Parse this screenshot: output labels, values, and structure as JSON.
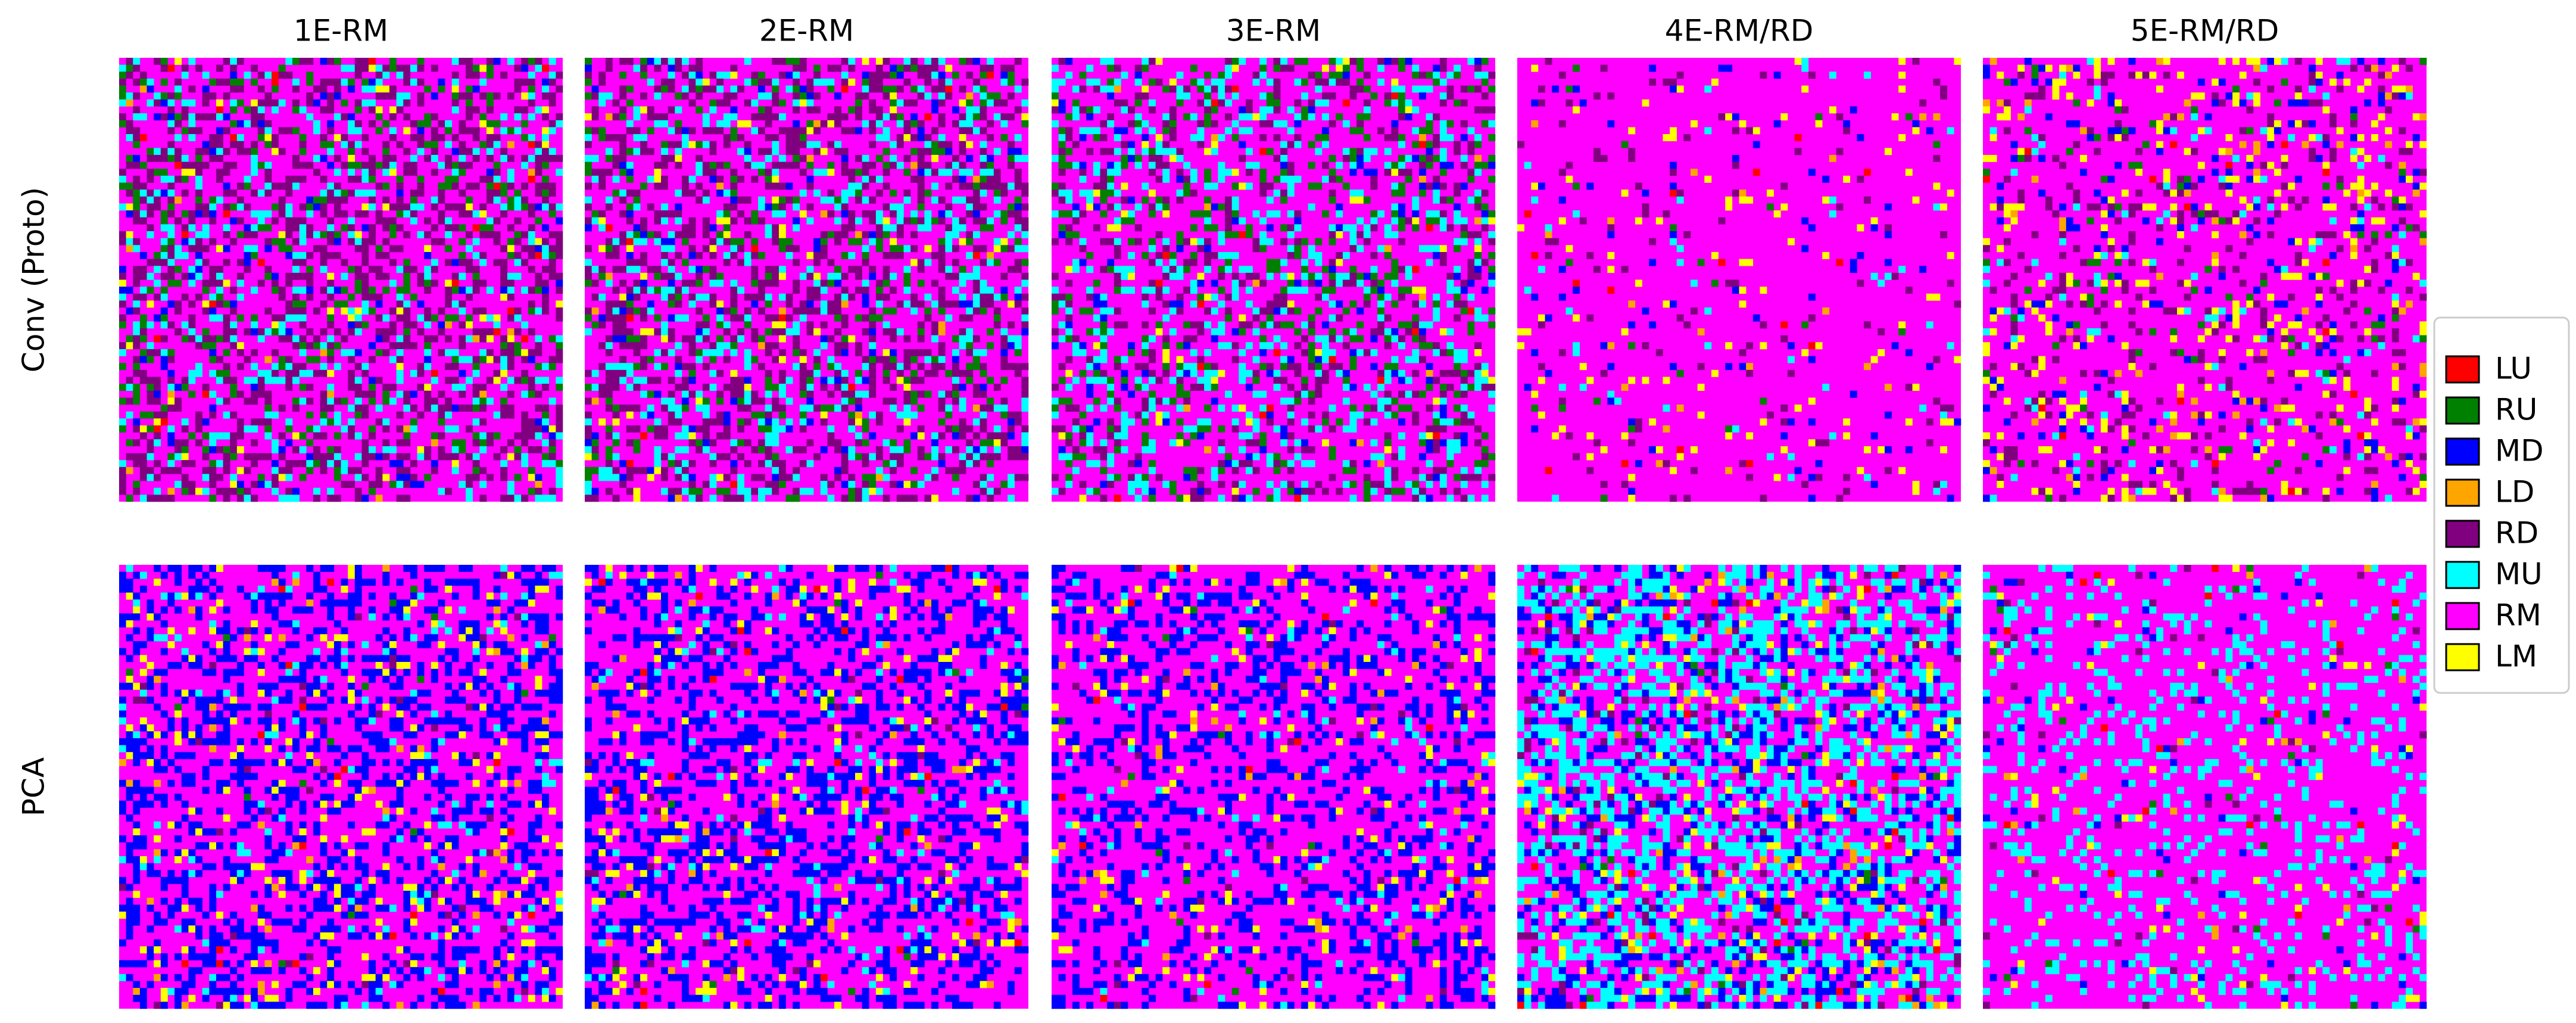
{
  "chart_data": {
    "type": "heatmap",
    "col_titles": [
      "1E-RM",
      "2E-RM",
      "3E-RM",
      "4E-RM/RD",
      "5E-RM/RD"
    ],
    "row_labels": [
      "Conv (Proto)",
      "PCA"
    ],
    "legend": {
      "labels": [
        "LU",
        "RU",
        "MD",
        "LD",
        "RD",
        "MU",
        "RM",
        "LM"
      ],
      "colors": [
        "#ff0000",
        "#008000",
        "#0000ff",
        "#ffa500",
        "#800080",
        "#00ffff",
        "#ff00ff",
        "#ffff00"
      ]
    },
    "panels": [
      [
        [
          0.005,
          0.08,
          0.03,
          0.005,
          0.25,
          0.12,
          0.49,
          0.02
        ],
        [
          0.005,
          0.08,
          0.03,
          0.005,
          0.24,
          0.12,
          0.5,
          0.02
        ],
        [
          0.005,
          0.1,
          0.03,
          0.005,
          0.12,
          0.13,
          0.59,
          0.02
        ],
        [
          0.005,
          0.005,
          0.02,
          0.005,
          0.03,
          0.01,
          0.9,
          0.03
        ],
        [
          0.005,
          0.02,
          0.05,
          0.02,
          0.08,
          0.03,
          0.72,
          0.08
        ]
      ],
      [
        [
          0.005,
          0.005,
          0.3,
          0.01,
          0.01,
          0.03,
          0.59,
          0.05
        ],
        [
          0.005,
          0.005,
          0.3,
          0.01,
          0.01,
          0.03,
          0.59,
          0.05
        ],
        [
          0.005,
          0.005,
          0.25,
          0.01,
          0.01,
          0.02,
          0.68,
          0.04
        ],
        [
          0.005,
          0.005,
          0.15,
          0.02,
          0.03,
          0.3,
          0.44,
          0.05
        ],
        [
          0.005,
          0.005,
          0.02,
          0.005,
          0.01,
          0.15,
          0.79,
          0.02
        ]
      ]
    ]
  }
}
